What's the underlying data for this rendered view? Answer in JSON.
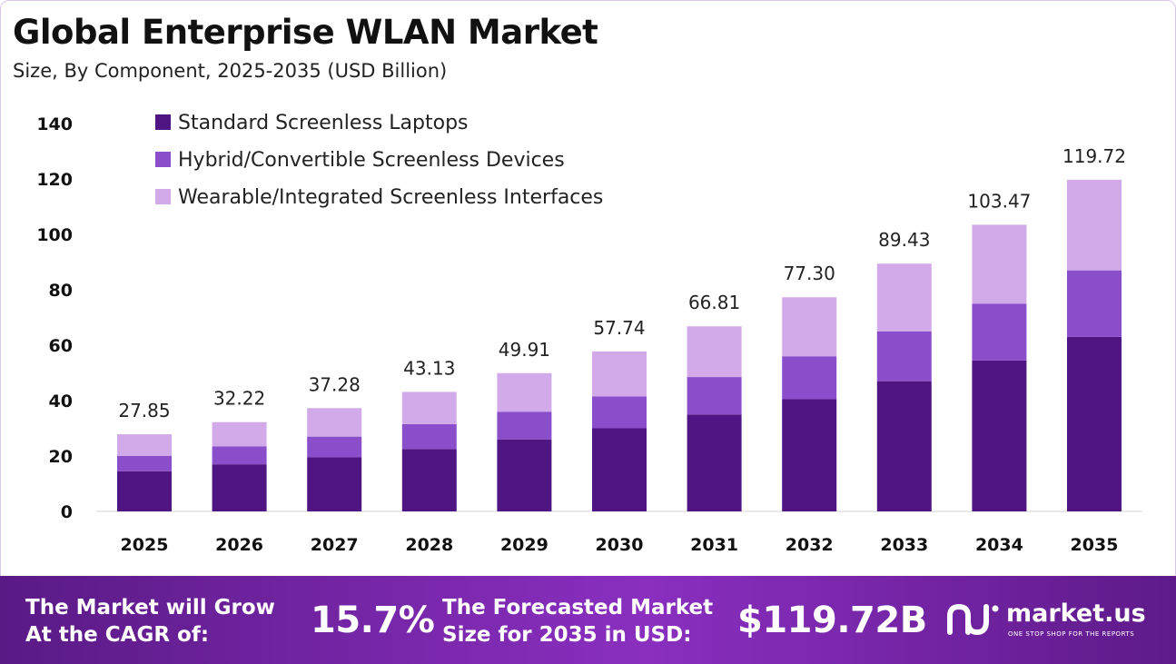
{
  "title": "Global Enterprise WLAN Market",
  "subtitle": "Size, By Component, 2025-2035 (USD Billion)",
  "colors": {
    "laptops": "#4f1583",
    "hybrid": "#8b4ecb",
    "wearable": "#d2aaea",
    "footer_start": "#5a1a86",
    "footer_end": "#8a2fc0"
  },
  "chart_data": {
    "type": "bar",
    "stacked": true,
    "categories": [
      "2025",
      "2026",
      "2027",
      "2028",
      "2029",
      "2030",
      "2031",
      "2032",
      "2033",
      "2034",
      "2035"
    ],
    "series": [
      {
        "name": "Standard Screenless Laptops",
        "values": [
          14.5,
          17.0,
          19.5,
          22.5,
          26.0,
          30.0,
          35.0,
          40.5,
          47.0,
          54.5,
          63.0
        ]
      },
      {
        "name": "Hybrid/Convertible Screenless Devices",
        "values": [
          5.5,
          6.5,
          7.5,
          9.0,
          10.0,
          11.5,
          13.5,
          15.5,
          18.0,
          20.5,
          24.0
        ]
      },
      {
        "name": "Wearable/Integrated Screenless Interfaces",
        "values": [
          7.85,
          8.72,
          10.28,
          11.63,
          13.91,
          16.24,
          18.31,
          21.3,
          24.43,
          28.47,
          32.72
        ]
      }
    ],
    "totals": [
      "27.85",
      "32.22",
      "37.28",
      "43.13",
      "49.91",
      "57.74",
      "66.81",
      "77.30",
      "89.43",
      "103.47",
      "119.72"
    ],
    "yticks": [
      "0",
      "20",
      "40",
      "60",
      "80",
      "100",
      "120",
      "140"
    ],
    "ylim": [
      0,
      140
    ],
    "legend_position": "top-left",
    "grid": false
  },
  "footer": {
    "cagr_label_line1": "The Market will Grow",
    "cagr_label_line2": "At the CAGR of:",
    "cagr_value": "15.7%",
    "forecast_label_line1": "The Forecasted Market",
    "forecast_label_line2": "Size for 2035 in USD:",
    "forecast_value": "$119.72B",
    "brand_name": "market.us",
    "brand_tagline": "ONE STOP SHOP FOR THE REPORTS",
    "brand_icon": "market-us-logo-icon"
  }
}
